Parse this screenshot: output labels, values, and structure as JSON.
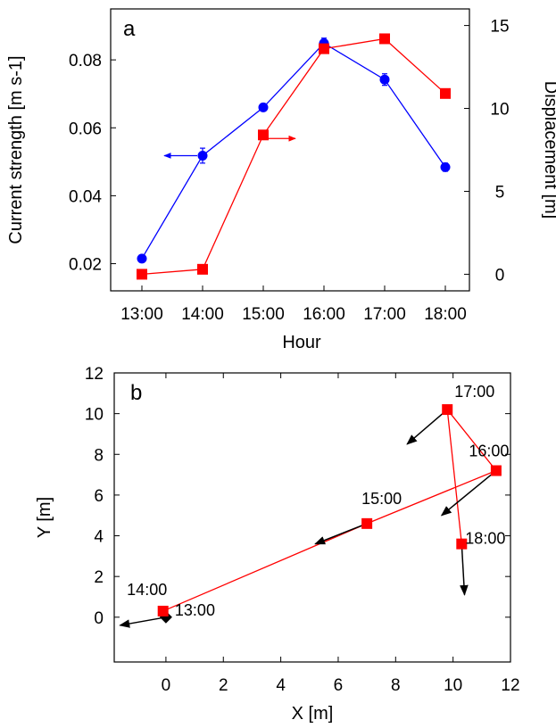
{
  "chart_data": [
    {
      "type": "line",
      "panel_label": "a",
      "categories": [
        "13:00",
        "14:00",
        "15:00",
        "16:00",
        "17:00",
        "18:00"
      ],
      "xlabel": "Hour",
      "ylabel": "Current strength [m s-1]",
      "y2label": "Displacement [m]",
      "ylim": [
        0.012,
        0.095
      ],
      "y2lim": [
        -1.0,
        16.0
      ],
      "yticks": [
        "0.02",
        "0.04",
        "0.06",
        "0.08"
      ],
      "y2ticks": [
        "0",
        "5",
        "10",
        "15"
      ],
      "series": [
        {
          "axis": "left",
          "color": "#0000ff",
          "marker": "circle",
          "values": [
            0.0215,
            0.0518,
            0.066,
            0.0849,
            0.0742,
            0.0484
          ],
          "errors": [
            0.0008,
            0.0022,
            0.0008,
            0.0015,
            0.0017,
            0.0012
          ]
        },
        {
          "axis": "right",
          "color": "#ff0000",
          "marker": "square",
          "values": [
            0.0,
            0.3,
            8.4,
            13.6,
            14.2,
            10.9
          ]
        }
      ],
      "annotations": [
        {
          "type": "arrow",
          "direction": "left",
          "color": "#0000ff",
          "series": 0
        },
        {
          "type": "arrow",
          "direction": "right",
          "color": "#ff0000",
          "series": 1
        }
      ]
    },
    {
      "type": "scatter",
      "panel_label": "b",
      "xlabel": "X [m]",
      "ylabel": "Y [m]",
      "xlim": [
        -1.8,
        12.0
      ],
      "ylim": [
        -2.2,
        12.0
      ],
      "xticks": [
        "0",
        "2",
        "4",
        "6",
        "8",
        "10",
        "12"
      ],
      "yticks": [
        "0",
        "2",
        "4",
        "6",
        "8",
        "10",
        "12"
      ],
      "line_color": "#ff0000",
      "points": [
        {
          "label": "13:00",
          "x": 0.0,
          "y": 0.0,
          "marker": "diamond",
          "color": "#000000"
        },
        {
          "label": "14:00",
          "x": -0.1,
          "y": 0.3,
          "marker": "square",
          "color": "#ff0000"
        },
        {
          "label": "15:00",
          "x": 7.0,
          "y": 4.6,
          "marker": "square",
          "color": "#ff0000"
        },
        {
          "label": "16:00",
          "x": 11.5,
          "y": 7.2,
          "marker": "square",
          "color": "#ff0000"
        },
        {
          "label": "17:00",
          "x": 9.8,
          "y": 10.2,
          "marker": "square",
          "color": "#ff0000"
        },
        {
          "label": "18:00",
          "x": 10.3,
          "y": 3.6,
          "marker": "square",
          "color": "#ff0000"
        }
      ],
      "vectors": [
        {
          "from": [
            0.0,
            0.0
          ],
          "to": [
            -1.6,
            -0.4
          ]
        },
        {
          "from": [
            7.0,
            4.6
          ],
          "to": [
            5.2,
            3.6
          ]
        },
        {
          "from": [
            11.5,
            7.2
          ],
          "to": [
            9.6,
            5.0
          ]
        },
        {
          "from": [
            9.8,
            10.2
          ],
          "to": [
            8.4,
            8.5
          ]
        },
        {
          "from": [
            10.3,
            3.6
          ],
          "to": [
            10.4,
            1.1
          ]
        }
      ]
    }
  ]
}
